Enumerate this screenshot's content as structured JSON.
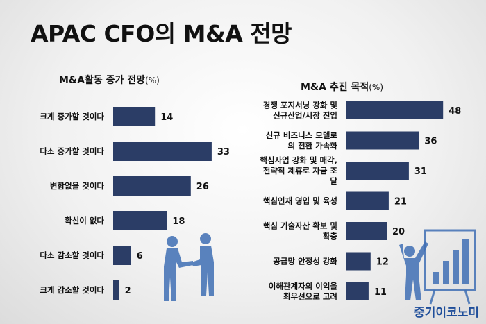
{
  "title": "APAC CFO의 M&A 전망",
  "brand": "중기이코노미",
  "chart_data": [
    {
      "type": "bar",
      "orientation": "horizontal",
      "title": "M&A활동 증가 전망",
      "unit": "(%)",
      "categories": [
        "크게 증가할 것이다",
        "다소 증가할 것이다",
        "변함없을 것이다",
        "확신이 없다",
        "다소 감소할 것이다",
        "크게 감소할 것이다"
      ],
      "values": [
        14,
        33,
        26,
        18,
        6,
        2
      ],
      "color": "#2b3d66"
    },
    {
      "type": "bar",
      "orientation": "horizontal",
      "title": "M&A 추진 목적",
      "unit": "(%)",
      "categories": [
        [
          "경쟁 포지셔닝 강화 및",
          "신규산업/시장 진입"
        ],
        [
          "신규 비즈니스 모델로",
          "의 전환 가속화"
        ],
        [
          "핵심사업 강화 및 매각,",
          "전략적 제휴로 자금 조",
          "달"
        ],
        [
          "핵심인재 영입 및 육성"
        ],
        [
          "핵심 기술자산 확보 및",
          "확충"
        ],
        [
          "공급망 안정성 강화"
        ],
        [
          "이해관계자의 이익을",
          "최우선으로 고려"
        ]
      ],
      "values": [
        48,
        36,
        31,
        21,
        20,
        12,
        11
      ],
      "color": "#2b3d66"
    }
  ]
}
